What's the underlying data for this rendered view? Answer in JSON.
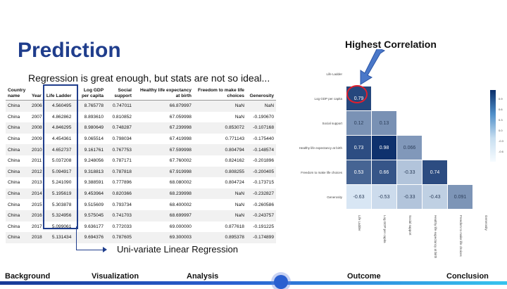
{
  "slide": {
    "title": "Prediction",
    "subtitle": "Regression is great enough, but stats are not so ideal...",
    "highlight_label": "Highest Correlation",
    "regression_note": "Uni-variate Linear Regression"
  },
  "table": {
    "columns": [
      "Country name",
      "Year",
      "Life Ladder",
      "Log GDP per capita",
      "Social support",
      "Healthy life expectancy at birth",
      "Freedom to make life choices",
      "Generosity"
    ],
    "rows": [
      [
        "China",
        "2006",
        "4.560495",
        "8.765778",
        "0.747011",
        "66.879997",
        "NaN",
        "NaN"
      ],
      [
        "China",
        "2007",
        "4.862862",
        "8.893610",
        "0.810852",
        "67.059998",
        "NaN",
        "-0.190670"
      ],
      [
        "China",
        "2008",
        "4.846295",
        "8.980649",
        "0.748287",
        "67.239998",
        "0.853072",
        "-0.107168"
      ],
      [
        "China",
        "2009",
        "4.454361",
        "9.065514",
        "0.798034",
        "67.419998",
        "0.771143",
        "-0.175440"
      ],
      [
        "China",
        "2010",
        "4.652737",
        "9.161761",
        "0.767753",
        "67.599998",
        "0.804794",
        "-0.148574"
      ],
      [
        "China",
        "2011",
        "5.037208",
        "9.248056",
        "0.787171",
        "67.760002",
        "0.824162",
        "-0.201896"
      ],
      [
        "China",
        "2012",
        "5.094917",
        "9.318813",
        "0.787818",
        "67.919998",
        "0.808255",
        "-0.200405"
      ],
      [
        "China",
        "2013",
        "5.241090",
        "9.388591",
        "0.777896",
        "68.080002",
        "0.804724",
        "-0.173715"
      ],
      [
        "China",
        "2014",
        "5.195619",
        "9.453964",
        "0.820366",
        "68.239998",
        "NaN",
        "-0.232827"
      ],
      [
        "China",
        "2015",
        "5.303878",
        "9.515609",
        "0.793734",
        "68.400002",
        "NaN",
        "-0.260586"
      ],
      [
        "China",
        "2016",
        "5.324956",
        "9.575045",
        "0.741703",
        "68.699997",
        "NaN",
        "-0.243757"
      ],
      [
        "China",
        "2017",
        "5.099061",
        "9.636177",
        "0.772033",
        "69.000000",
        "0.877618",
        "-0.191225"
      ],
      [
        "China",
        "2018",
        "5.131434",
        "9.694376",
        "0.787605",
        "69.300003",
        "0.895378",
        "-0.174899"
      ]
    ]
  },
  "chart_data": {
    "type": "heatmap",
    "title": "",
    "labels": [
      "Life Ladder",
      "Log GDP per capita",
      "Social support",
      "Healthy life expectancy at birth",
      "Freedom to make life choices",
      "Generosity"
    ],
    "lower_triangle": [
      [],
      [
        "0.79"
      ],
      [
        "0.12",
        "0.13"
      ],
      [
        "0.73",
        "0.98",
        "0.066"
      ],
      [
        "0.53",
        "0.66",
        "-0.33",
        "0.74"
      ],
      [
        "-0.63",
        "-0.53",
        "-0.33",
        "-0.43",
        "0.091"
      ]
    ],
    "values": [
      [],
      [
        0.79
      ],
      [
        0.12,
        0.13
      ],
      [
        0.73,
        0.98,
        0.066
      ],
      [
        0.53,
        0.66,
        -0.33,
        0.74
      ],
      [
        -0.63,
        -0.53,
        -0.33,
        -0.43,
        0.091
      ]
    ],
    "colorbar_ticks": [
      "0.9",
      "0.6",
      "0.3",
      "0.0",
      "-0.3",
      "-0.6"
    ],
    "highlight": {
      "row": 1,
      "col": 0,
      "value": "0.79"
    }
  },
  "colors": {
    "title": "#1f3d8c",
    "highlight_circle": "#e01f2d",
    "heat_high": "#0b2f6b",
    "heat_low": "#f6fbff"
  },
  "nav": {
    "items": [
      "Background",
      "Visualization",
      "Analysis",
      "Outcome",
      "Conclusion"
    ],
    "active_marker_between": [
      "Analysis",
      "Outcome"
    ]
  }
}
